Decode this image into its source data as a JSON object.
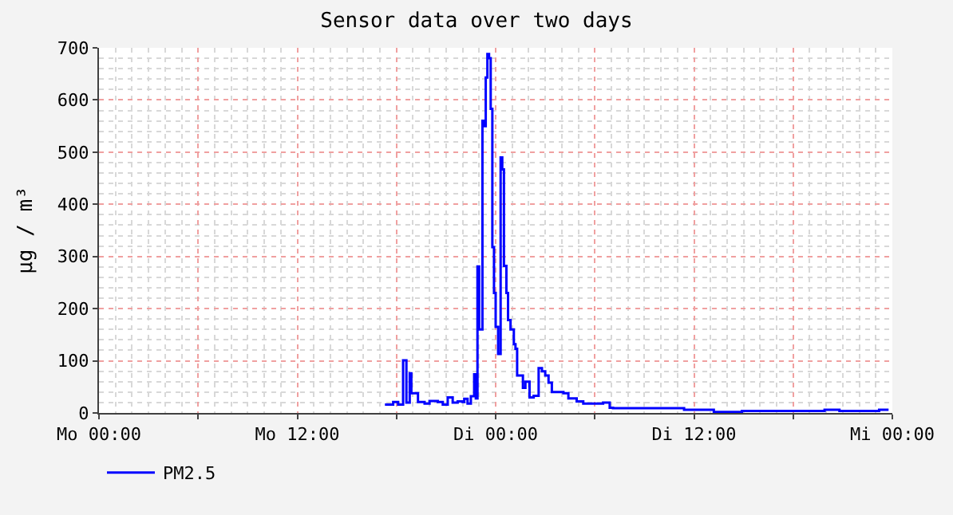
{
  "chart_data": {
    "type": "step",
    "title": "Sensor data over two days",
    "ylabel": "µg / m³",
    "xlim": [
      "--01-01T00:00",
      "--01-03T00:00"
    ],
    "ylim": [
      0,
      700
    ],
    "xticks": [
      {
        "value": "--01-01T00:00",
        "label": "Mo 00:00"
      },
      {
        "value": "--01-01T06:00",
        "label": null
      },
      {
        "value": "--01-01T12:00",
        "label": "Mo 12:00"
      },
      {
        "value": "--01-01T18:00",
        "label": null
      },
      {
        "value": "--01-02T00:00",
        "label": "Di 00:00"
      },
      {
        "value": "--01-02T06:00",
        "label": null
      },
      {
        "value": "--01-02T12:00",
        "label": "Di 12:00"
      },
      {
        "value": "--01-02T18:00",
        "label": null
      },
      {
        "value": "--01-03T00:00",
        "label": "Mi 00:00"
      }
    ],
    "yticks": [
      0,
      100,
      200,
      300,
      400,
      500,
      600,
      700
    ],
    "grid": true,
    "legend": "bottom left",
    "series": [
      {
        "name": "PM2.5",
        "color": "#0000ff",
        "x": [
          "--01-01T17:18",
          "--01-01T17:48",
          "--01-01T18:06",
          "--01-01T18:24",
          "--01-01T18:36",
          "--01-01T18:48",
          "--01-01T18:54",
          "--01-01T19:18",
          "--01-01T19:42",
          "--01-01T20:00",
          "--01-01T20:30",
          "--01-01T20:48",
          "--01-01T21:06",
          "--01-01T21:24",
          "--01-01T21:42",
          "--01-01T22:00",
          "--01-01T22:06",
          "--01-01T22:18",
          "--01-01T22:30",
          "--01-01T22:42",
          "--01-01T22:48",
          "--01-01T22:54",
          "--01-01T23:00",
          "--01-01T23:12",
          "--01-01T23:18",
          "--01-01T23:24",
          "--01-01T23:30",
          "--01-01T23:36",
          "--01-01T23:42",
          "--01-01T23:48",
          "--01-01T23:54",
          "--01-02T00:00",
          "--01-02T00:09",
          "--01-02T00:18",
          "--01-02T00:24",
          "--01-02T00:30",
          "--01-02T00:39",
          "--01-02T00:45",
          "--01-02T00:54",
          "--01-02T01:06",
          "--01-02T01:12",
          "--01-02T01:18",
          "--01-02T01:39",
          "--01-02T01:48",
          "--01-02T02:03",
          "--01-02T02:18",
          "--01-02T02:36",
          "--01-02T02:48",
          "--01-02T03:00",
          "--01-02T03:12",
          "--01-02T03:24",
          "--01-02T03:45",
          "--01-02T04:06",
          "--01-02T04:24",
          "--01-02T04:54",
          "--01-02T05:18",
          "--01-02T06:00",
          "--01-02T06:30",
          "--01-02T06:54",
          "--01-02T07:06",
          "--01-02T07:48",
          "--01-02T09:00",
          "--01-02T11:24",
          "--01-02T13:12",
          "--01-02T14:54",
          "--01-02T19:54",
          "--01-02T20:48",
          "--01-02T23:12",
          "--01-02T23:42"
        ],
        "values": [
          16,
          21,
          16,
          101,
          20,
          76,
          38,
          21,
          18,
          23,
          21,
          16,
          30,
          20,
          22,
          21,
          27,
          18,
          32,
          74,
          28,
          281,
          160,
          560,
          550,
          643,
          688,
          680,
          583,
          318,
          230,
          165,
          113,
          490,
          467,
          282,
          230,
          178,
          160,
          132,
          123,
          72,
          48,
          60,
          30,
          33,
          86,
          80,
          72,
          58,
          40,
          40,
          38,
          28,
          22,
          18,
          18,
          20,
          10,
          9,
          9,
          9,
          6,
          2,
          4,
          6,
          4,
          6,
          4
        ]
      }
    ]
  }
}
